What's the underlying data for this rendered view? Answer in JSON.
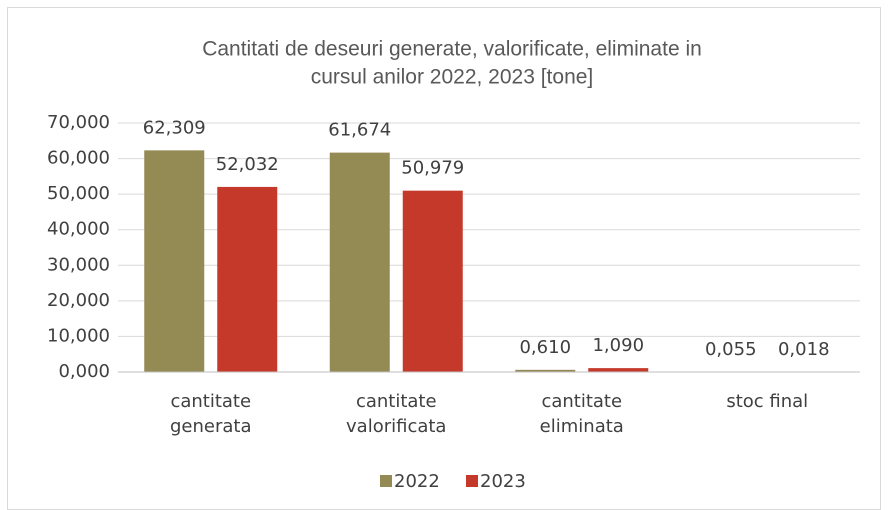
{
  "chart_data": {
    "type": "bar",
    "title": [
      "Cantitati de deseuri generate, valorificate, eliminate in",
      "cursul anilor 2022, 2023 [tone]"
    ],
    "categories": [
      "cantitate\ngenerata",
      "cantitate\nvalorificata",
      "cantitate\neliminata",
      "stoc final"
    ],
    "series": [
      {
        "name": "2022",
        "color": "#948a54",
        "values": [
          62.309,
          61.674,
          0.61,
          0.055
        ],
        "value_labels": [
          "62,309",
          "61,674",
          "0,610",
          "0,055"
        ]
      },
      {
        "name": "2023",
        "color": "#c5392b",
        "values": [
          52.032,
          50.979,
          1.09,
          0.018
        ],
        "value_labels": [
          "52,032",
          "50,979",
          "1,090",
          "0,018"
        ]
      }
    ],
    "ylim": [
      0,
      70
    ],
    "yticks": [
      {
        "value": 0,
        "label": "0,000"
      },
      {
        "value": 10,
        "label": "10,000"
      },
      {
        "value": 20,
        "label": "20,000"
      },
      {
        "value": 30,
        "label": "30,000"
      },
      {
        "value": 40,
        "label": "40,000"
      },
      {
        "value": 50,
        "label": "50,000"
      },
      {
        "value": 60,
        "label": "60,000"
      },
      {
        "value": 70,
        "label": "70,000"
      }
    ],
    "grid": true,
    "legend": "bottom"
  }
}
